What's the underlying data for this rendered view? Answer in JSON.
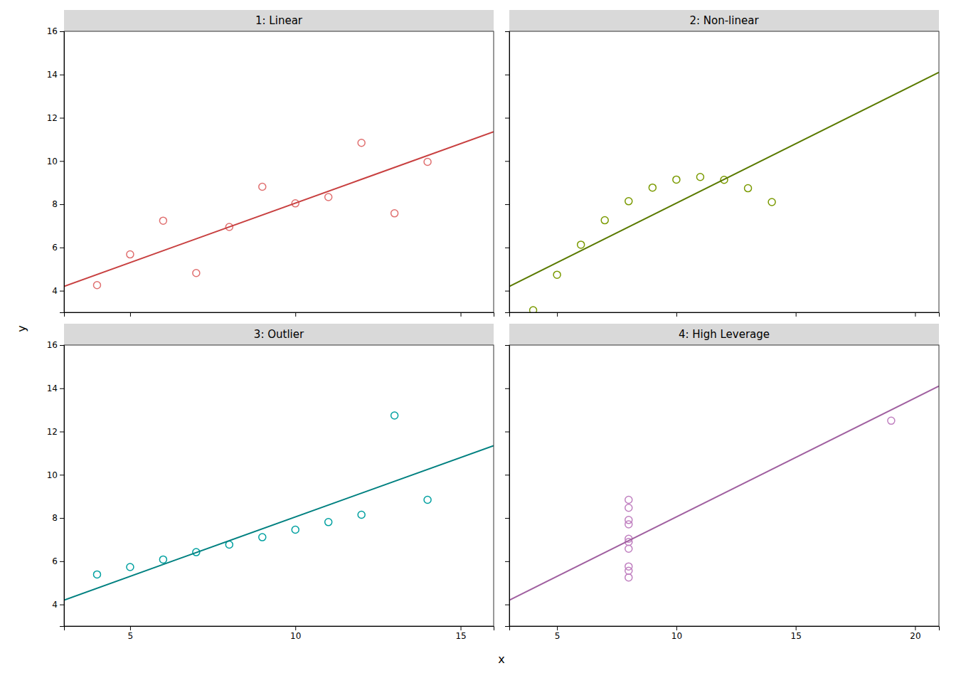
{
  "chart_data": [
    {
      "type": "scatter",
      "title": "1: Linear",
      "xlim": [
        3,
        16
      ],
      "xticks": [
        5,
        10,
        15
      ],
      "ylim": [
        3,
        16
      ],
      "yticks": [
        4,
        6,
        8,
        10,
        12,
        14,
        16
      ],
      "grid": false,
      "tick_labels": "y",
      "series": [
        {
          "type": "scatter",
          "marker": "circle-open",
          "color": "#E07070",
          "x": [
            10,
            8,
            13,
            9,
            11,
            14,
            6,
            4,
            12,
            7,
            5
          ],
          "values": [
            8.04,
            6.95,
            7.58,
            8.81,
            8.33,
            9.96,
            7.24,
            4.26,
            10.84,
            4.82,
            5.68
          ]
        },
        {
          "type": "line",
          "line_style": "solid",
          "color": "#C84040",
          "x": [
            3,
            16
          ],
          "values": [
            4.2003,
            11.3516
          ]
        }
      ]
    },
    {
      "type": "scatter",
      "title": "2: Non-linear",
      "xlim": [
        3,
        21
      ],
      "xticks": [
        5,
        10,
        15,
        20
      ],
      "ylim": [
        3,
        16
      ],
      "yticks": [
        4,
        6,
        8,
        10,
        12,
        14,
        16
      ],
      "grid": false,
      "tick_labels": false,
      "series": [
        {
          "type": "scatter",
          "marker": "circle-open",
          "color": "#7A9A00",
          "x": [
            10,
            8,
            13,
            9,
            11,
            14,
            6,
            4,
            12,
            7,
            5
          ],
          "values": [
            9.14,
            8.14,
            8.74,
            8.77,
            9.26,
            8.1,
            6.13,
            3.1,
            9.13,
            7.26,
            4.74
          ]
        },
        {
          "type": "line",
          "line_style": "solid",
          "color": "#5A7A00",
          "x": [
            3,
            21
          ],
          "values": [
            4.2009,
            14.1009
          ]
        }
      ]
    },
    {
      "type": "scatter",
      "title": "3: Outlier",
      "xlim": [
        3,
        16
      ],
      "xticks": [
        5,
        10,
        15
      ],
      "ylim": [
        3,
        16
      ],
      "yticks": [
        4,
        6,
        8,
        10,
        12,
        14,
        16
      ],
      "grid": false,
      "tick_labels": true,
      "series": [
        {
          "type": "scatter",
          "marker": "circle-open",
          "color": "#00A0A0",
          "x": [
            10,
            8,
            13,
            9,
            11,
            14,
            6,
            4,
            12,
            7,
            5
          ],
          "values": [
            7.46,
            6.77,
            12.74,
            7.11,
            7.81,
            8.84,
            6.08,
            5.39,
            8.15,
            6.42,
            5.73
          ]
        },
        {
          "type": "line",
          "line_style": "solid",
          "color": "#008080",
          "x": [
            3,
            16
          ],
          "values": [
            4.2018,
            11.3479
          ]
        }
      ]
    },
    {
      "type": "scatter",
      "title": "4: High Leverage",
      "xlim": [
        3,
        21
      ],
      "xticks": [
        5,
        10,
        15,
        20
      ],
      "ylim": [
        3,
        16
      ],
      "yticks": [
        4,
        6,
        8,
        10,
        12,
        14,
        16
      ],
      "grid": false,
      "tick_labels": "x",
      "series": [
        {
          "type": "scatter",
          "marker": "circle-open",
          "color": "#C080C0",
          "x": [
            8,
            8,
            8,
            8,
            8,
            8,
            8,
            19,
            8,
            8,
            8
          ],
          "values": [
            6.58,
            5.76,
            7.71,
            8.84,
            8.47,
            7.04,
            5.25,
            12.5,
            5.56,
            7.91,
            6.89
          ]
        },
        {
          "type": "line",
          "line_style": "solid",
          "color": "#A060A0",
          "x": [
            3,
            21
          ],
          "values": [
            4.2015,
            14.0997
          ]
        }
      ]
    }
  ],
  "xlabel": "x",
  "ylabel": "y"
}
